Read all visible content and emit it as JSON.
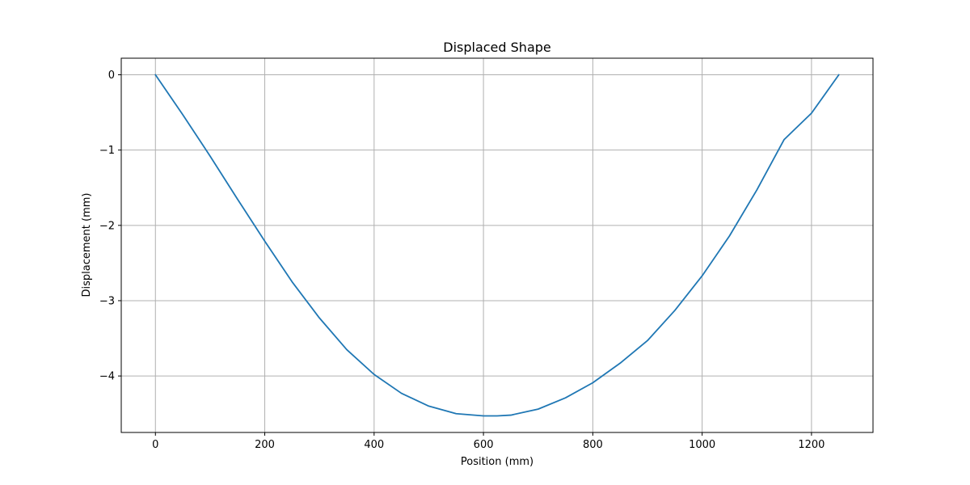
{
  "chart_data": {
    "type": "line",
    "title": "Displaced Shape",
    "xlabel": "Position (mm)",
    "ylabel": "Displacement (mm)",
    "xlim": [
      -62.5,
      1312.5
    ],
    "ylim": [
      -4.75,
      0.22
    ],
    "x_ticks": [
      0,
      200,
      400,
      600,
      800,
      1000,
      1200
    ],
    "y_ticks": [
      0,
      -1,
      -2,
      -3,
      -4
    ],
    "x_tick_labels": [
      "0",
      "200",
      "400",
      "600",
      "800",
      "1000",
      "1200"
    ],
    "y_tick_labels": [
      "0",
      "−1",
      "−2",
      "−3",
      "−4"
    ],
    "grid": true,
    "series": [
      {
        "color": "#1f77b4",
        "x": [
          0,
          50,
          100,
          150,
          200,
          250,
          300,
          350,
          400,
          450,
          500,
          550,
          600,
          625,
          650,
          700,
          750,
          800,
          850,
          900,
          950,
          1000,
          1050,
          1100,
          1150,
          1200,
          1250
        ],
        "y": [
          0,
          -0.53,
          -1.08,
          -1.65,
          -2.21,
          -2.75,
          -3.23,
          -3.65,
          -3.98,
          -4.23,
          -4.4,
          -4.5,
          -4.53,
          -4.53,
          -4.52,
          -4.44,
          -4.29,
          -4.09,
          -3.83,
          -3.53,
          -3.13,
          -2.67,
          -2.14,
          -1.53,
          -0.86,
          -0.51,
          0
        ]
      }
    ]
  }
}
